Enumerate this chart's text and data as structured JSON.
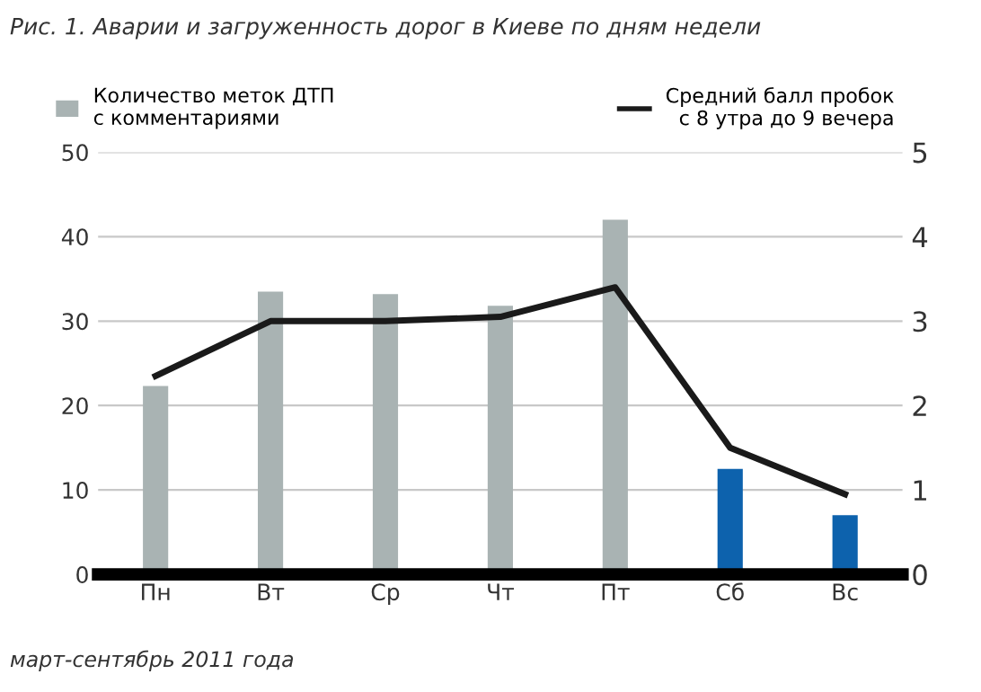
{
  "chart_data": {
    "type": "bar",
    "title": "Рис. 1. Аварии и загруженность дорог в Киеве по дням недели",
    "categories": [
      "Пн",
      "Вт",
      "Ср",
      "Чт",
      "Пт",
      "Сб",
      "Вс"
    ],
    "series": [
      {
        "name": "Количество меток ДТП\nс комментариями",
        "colors": [
          "#a9b3b3",
          "#a9b3b3",
          "#a9b3b3",
          "#a9b3b3",
          "#a9b3b3",
          "#0d62ad",
          "#0d62ad"
        ],
        "values": [
          22.3,
          33.5,
          33.2,
          31.8,
          42,
          12.5,
          7
        ]
      },
      {
        "name": "Средний балл пробок\nс 8 утра до 9 вечера",
        "type": "line",
        "axis": "y2",
        "color": "#1a1a1a",
        "values": [
          2.35,
          3.0,
          3.0,
          3.05,
          3.4,
          1.5,
          0.95
        ]
      }
    ],
    "ylim": [
      0,
      50
    ],
    "yticks": [
      0,
      10,
      20,
      30,
      40,
      50
    ],
    "y2lim": [
      0,
      5
    ],
    "y2ticks": [
      0,
      1,
      2,
      3,
      4,
      5
    ],
    "grid": "y",
    "legend": "top",
    "marker": "none",
    "line_style": "solid",
    "annotations": [
      "март-сентябрь 2011 года"
    ]
  }
}
